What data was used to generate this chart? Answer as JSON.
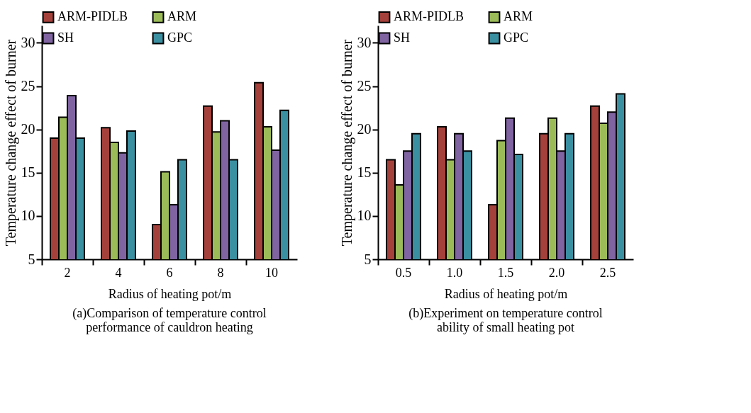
{
  "chart_data": [
    {
      "type": "bar",
      "title": "(a)Comparison of temperature control performance of cauldron heating",
      "xlabel": "Radius of heating pot/m",
      "ylabel": "Temperature change effect of burner",
      "categories": [
        "2",
        "4",
        "6",
        "8",
        "10"
      ],
      "ylim": [
        5,
        32
      ],
      "yticks": [
        5,
        10,
        15,
        20,
        25,
        30
      ],
      "grid": false,
      "legend": "top",
      "series": [
        {
          "name": "ARM-PIDLB",
          "color": "#a5413b",
          "values": [
            19.0,
            20.2,
            9.0,
            22.7,
            25.4
          ]
        },
        {
          "name": "ARM",
          "color": "#9bbb59",
          "values": [
            21.4,
            18.5,
            15.1,
            19.7,
            20.3
          ]
        },
        {
          "name": "SH",
          "color": "#8064a2",
          "values": [
            23.9,
            17.3,
            11.3,
            21.0,
            17.6
          ]
        },
        {
          "name": "GPC",
          "color": "#3a8fa0",
          "values": [
            19.0,
            19.8,
            16.5,
            16.5,
            22.2
          ]
        }
      ]
    },
    {
      "type": "bar",
      "title": "(b)Experiment on temperature control ability of small heating pot",
      "xlabel": "Radius of heating pot/m",
      "ylabel": "Temperature change effect of burner",
      "categories": [
        "0.5",
        "1.0",
        "1.5",
        "2.0",
        "2.5"
      ],
      "ylim": [
        5,
        32
      ],
      "yticks": [
        5,
        10,
        15,
        20,
        25,
        30
      ],
      "grid": false,
      "legend": "top",
      "series": [
        {
          "name": "ARM-PIDLB",
          "color": "#a5413b",
          "values": [
            16.5,
            20.3,
            11.3,
            19.5,
            22.7
          ]
        },
        {
          "name": "ARM",
          "color": "#9bbb59",
          "values": [
            13.6,
            16.5,
            18.7,
            21.3,
            20.7
          ]
        },
        {
          "name": "SH",
          "color": "#8064a2",
          "values": [
            17.5,
            19.5,
            21.3,
            17.5,
            22.0
          ]
        },
        {
          "name": "GPC",
          "color": "#3a8fa0",
          "values": [
            19.5,
            17.5,
            17.1,
            19.5,
            24.1
          ]
        }
      ]
    }
  ]
}
